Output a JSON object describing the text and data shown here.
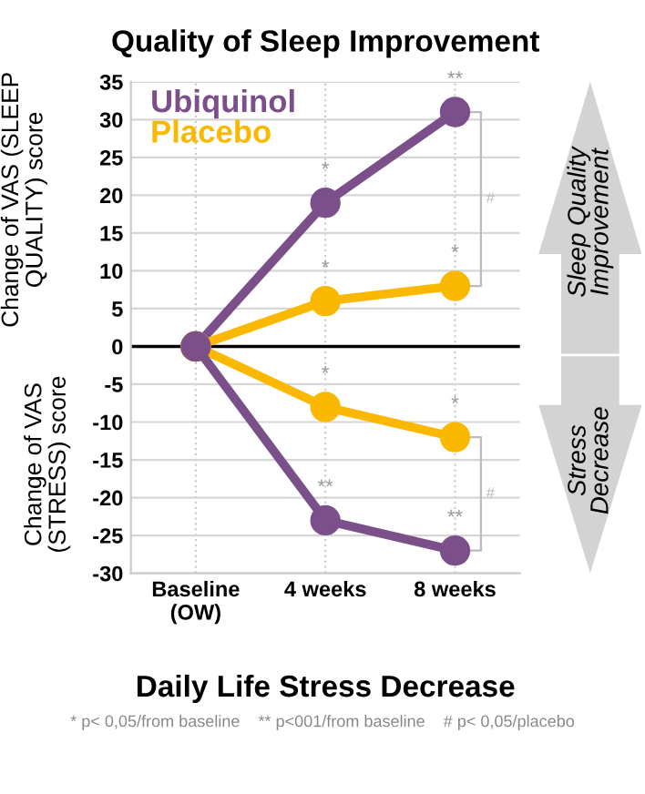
{
  "chart_data": {
    "type": "line",
    "title": "Quality of Sleep Improvement",
    "xlabel": "Daily Life Stress Decrease",
    "ylabel": "Change of VAS (SLEEP\nQUALITY) score",
    "categories": [
      "Baseline\n(OW)",
      "4 weeks",
      "8 weeks"
    ],
    "series": [
      {
        "name": "Ubiquinol",
        "color": "#7b4f8a",
        "values": [
          0,
          19,
          31
        ]
      },
      {
        "name": "Placebo",
        "color": "#fbb800",
        "values": [
          0,
          6,
          8
        ]
      },
      {
        "color": "#fbb800",
        "values": [
          0,
          -8,
          -12
        ]
      },
      {
        "color": "#7b4f8a",
        "values": [
          0,
          -23,
          -27
        ]
      }
    ],
    "ylim": [
      -30,
      35
    ],
    "yticks": [
      -30,
      -25,
      -20,
      -15,
      -10,
      -5,
      0,
      5,
      10,
      15,
      20,
      25,
      30,
      35
    ],
    "grid": true,
    "legend": "top left",
    "marker": "circle",
    "line_style": "solid",
    "ref_lines": [
      {
        "axis": "y",
        "value": 0,
        "color": "#000000"
      }
    ],
    "annotations": [
      "Change of VAS\n(STRESS) score",
      "Sleep Quality\nImprovement",
      "Stress\nDecrease",
      "* p< 0,05/from baseline    ** p<001/from baseline    # p< 0,05/placebo",
      "#",
      "#",
      {
        "text": "*",
        "x": "4 weeks",
        "y": 19
      },
      {
        "text": "**",
        "x": "8 weeks",
        "y": 31
      },
      {
        "text": "*",
        "x": "4 weeks",
        "y": 6
      },
      {
        "text": "*",
        "x": "8 weeks",
        "y": 8
      },
      {
        "text": "*",
        "x": "4 weeks",
        "y": -8
      },
      {
        "text": "*",
        "x": "8 weeks",
        "y": -12
      },
      {
        "text": "**",
        "x": "4 weeks",
        "y": -23
      },
      {
        "text": "**",
        "x": "8 weeks",
        "y": -27
      }
    ]
  }
}
